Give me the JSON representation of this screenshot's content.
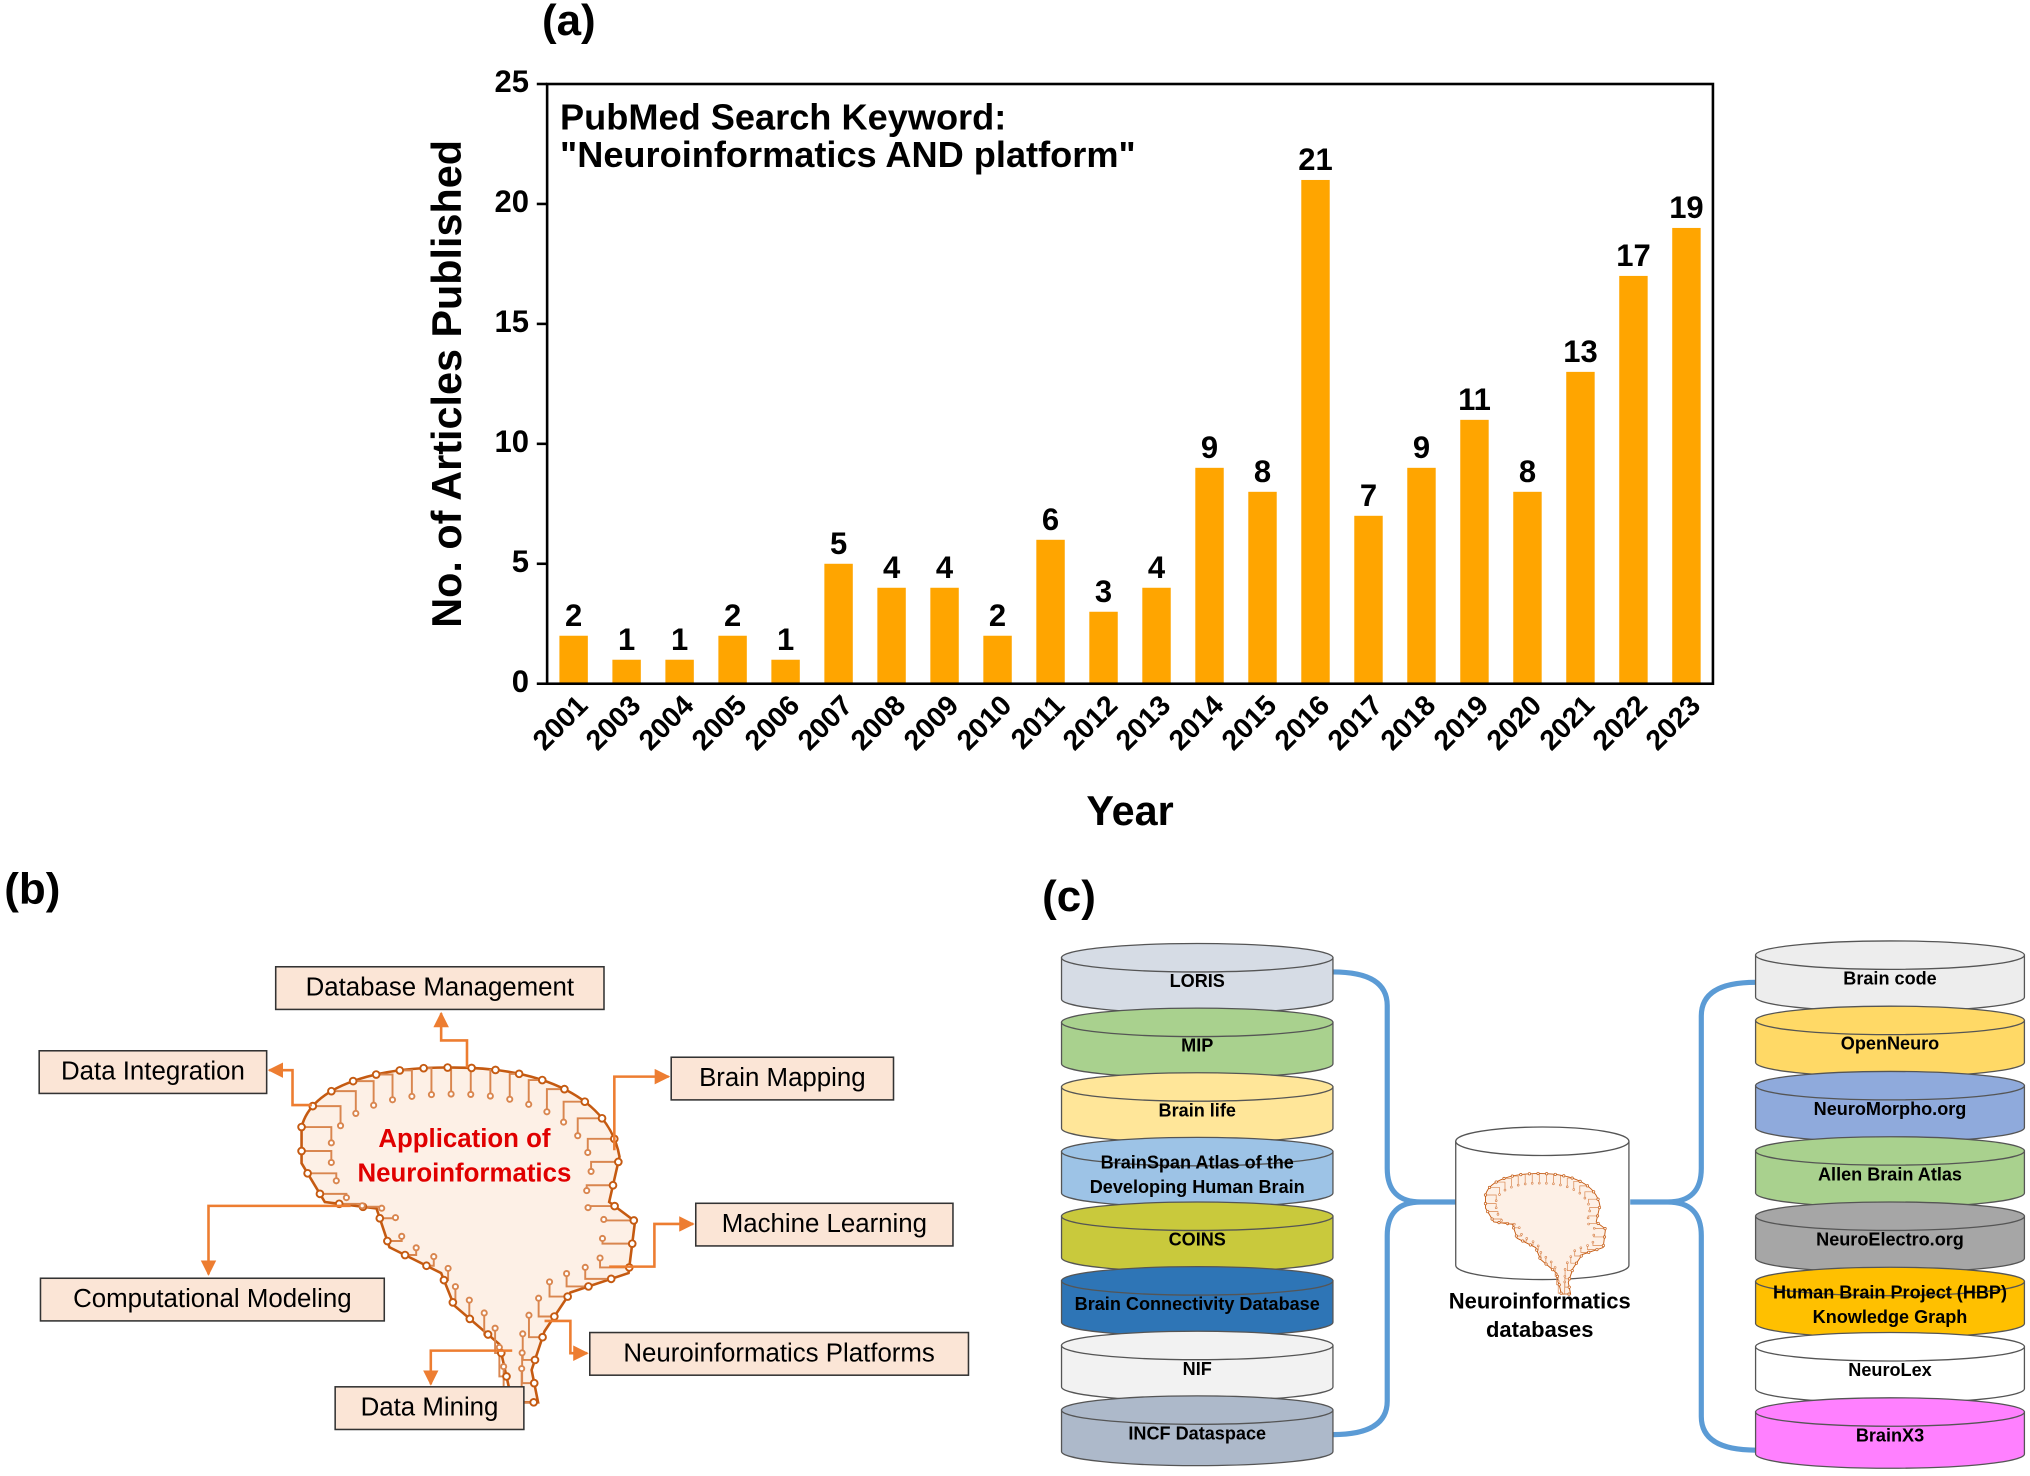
{
  "chart_data": {
    "type": "bar",
    "panel_label": "(a)",
    "annotation": [
      "PubMed Search Keyword:",
      "\"Neuroinformatics AND platform\""
    ],
    "xlabel": "Year",
    "ylabel": "No. of Articles Published",
    "categories": [
      "2001",
      "2003",
      "2004",
      "2005",
      "2006",
      "2007",
      "2008",
      "2009",
      "2010",
      "2011",
      "2012",
      "2013",
      "2014",
      "2015",
      "2016",
      "2017",
      "2018",
      "2019",
      "2020",
      "2021",
      "2022",
      "2023"
    ],
    "values": [
      2,
      1,
      1,
      2,
      1,
      5,
      4,
      4,
      2,
      6,
      3,
      4,
      9,
      8,
      21,
      7,
      9,
      11,
      8,
      13,
      17,
      19
    ],
    "color": "#ffa500",
    "ylim": [
      0,
      25
    ],
    "yticks": [
      0,
      5,
      10,
      15,
      20,
      25
    ],
    "grid": false
  },
  "diagram_b": {
    "panel_label": "(b)",
    "center_label": [
      "Application of",
      "Neuroinformatics"
    ],
    "boxes": [
      "Database Management",
      "Data Integration",
      "Brain Mapping",
      "Machine Learning",
      "Computational Modeling",
      "Neuroinformatics Platforms",
      "Data Mining"
    ]
  },
  "diagram_c": {
    "panel_label": "(c)",
    "center_label": [
      "Neuroinformatics",
      "databases"
    ],
    "left_stack": [
      {
        "lines": [
          "LORIS"
        ],
        "color": "#d6dce5"
      },
      {
        "lines": [
          "MIP"
        ],
        "color": "#a9d18e"
      },
      {
        "lines": [
          "Brain life"
        ],
        "color": "#ffe699"
      },
      {
        "lines": [
          "BrainSpan Atlas of the",
          "Developing Human Brain"
        ],
        "color": "#9dc3e6"
      },
      {
        "lines": [
          "COINS"
        ],
        "color": "#c9c93c"
      },
      {
        "lines": [
          "Brain Connectivity Database"
        ],
        "color": "#2e75b6"
      },
      {
        "lines": [
          "NIF"
        ],
        "color": "#f2f2f2"
      },
      {
        "lines": [
          "INCF Dataspace"
        ],
        "color": "#adb9ca"
      }
    ],
    "right_stack": [
      {
        "lines": [
          "Brain code"
        ],
        "color": "#ededed"
      },
      {
        "lines": [
          "OpenNeuro"
        ],
        "color": "#ffd966"
      },
      {
        "lines": [
          "NeuroMorpho.org"
        ],
        "color": "#8faadc"
      },
      {
        "lines": [
          "Allen Brain Atlas"
        ],
        "color": "#a9d18e"
      },
      {
        "lines": [
          "NeuroElectro.org"
        ],
        "color": "#a6a6a6"
      },
      {
        "lines": [
          "Human Brain Project (HBP)",
          "Knowledge Graph"
        ],
        "color": "#ffc000"
      },
      {
        "lines": [
          "NeuroLex"
        ],
        "color": "#ffffff"
      },
      {
        "lines": [
          "BrainX3"
        ],
        "color": "#ff80ff"
      }
    ]
  }
}
